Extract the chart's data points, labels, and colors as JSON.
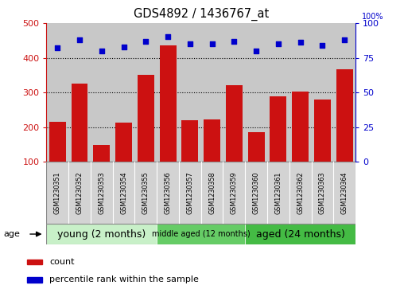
{
  "title": "GDS4892 / 1436767_at",
  "samples": [
    "GSM1230351",
    "GSM1230352",
    "GSM1230353",
    "GSM1230354",
    "GSM1230355",
    "GSM1230356",
    "GSM1230357",
    "GSM1230358",
    "GSM1230359",
    "GSM1230360",
    "GSM1230361",
    "GSM1230362",
    "GSM1230363",
    "GSM1230364"
  ],
  "counts": [
    215,
    325,
    148,
    213,
    350,
    435,
    220,
    222,
    322,
    185,
    288,
    302,
    280,
    368
  ],
  "percentile_ranks": [
    82,
    88,
    80,
    83,
    87,
    90,
    85,
    85,
    87,
    80,
    85,
    86,
    84,
    88
  ],
  "groups": [
    {
      "label": "young (2 months)",
      "start": 0,
      "end": 5,
      "color": "#C8F0C8"
    },
    {
      "label": "middle aged (12 months)",
      "start": 5,
      "end": 9,
      "color": "#66CC66"
    },
    {
      "label": "aged (24 months)",
      "start": 9,
      "end": 14,
      "color": "#44BB44"
    }
  ],
  "ylim_left": [
    100,
    500
  ],
  "ylim_right": [
    0,
    100
  ],
  "yticks_left": [
    100,
    200,
    300,
    400,
    500
  ],
  "yticks_right": [
    0,
    25,
    50,
    75,
    100
  ],
  "bar_color": "#CC1111",
  "dot_color": "#0000CC",
  "grid_color": "black",
  "plot_bg_color": "#C8C8C8",
  "xtick_bg_color": "#D3D3D3",
  "legend_count_label": "count",
  "legend_pct_label": "percentile rank within the sample",
  "age_label": "age",
  "dotted_gridlines": [
    200,
    300,
    400
  ],
  "group_font_sizes": [
    9,
    7,
    9
  ]
}
